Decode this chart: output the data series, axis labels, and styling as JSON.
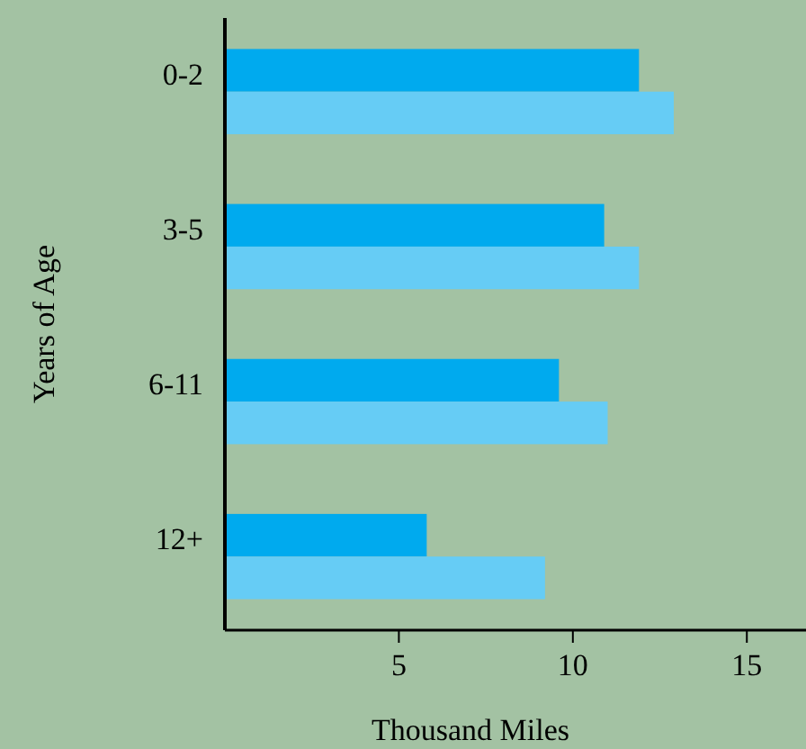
{
  "chart_data": {
    "type": "bar",
    "orientation": "horizontal",
    "categories": [
      "0-2",
      "3-5",
      "6-11",
      "12+"
    ],
    "series": [
      {
        "color": "#00aaee",
        "values": [
          11.9,
          10.9,
          9.6,
          5.8
        ]
      },
      {
        "color": "#66ccf5",
        "values": [
          12.9,
          11.9,
          11.0,
          9.2
        ]
      }
    ],
    "xlim": [
      0,
      16.7
    ],
    "xticks": [
      5,
      10,
      15
    ],
    "xlabel": "Thousand Miles",
    "ylabel": "Years of Age",
    "grid": false
  }
}
